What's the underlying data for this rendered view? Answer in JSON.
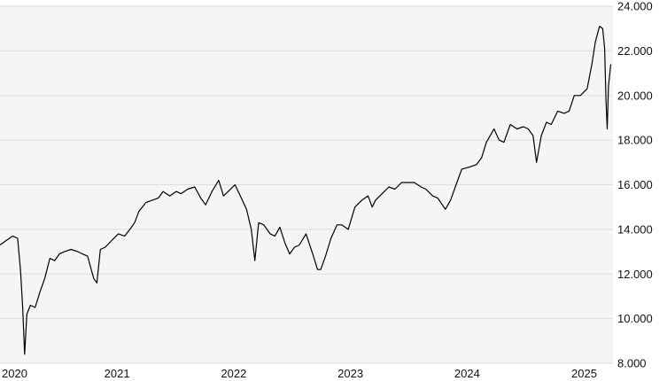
{
  "chart_data": {
    "type": "line",
    "title": "",
    "xlabel": "",
    "ylabel": "",
    "ylim": [
      8000,
      24000
    ],
    "y_ticks": [
      8000,
      10000,
      12000,
      14000,
      16000,
      18000,
      20000,
      22000,
      24000
    ],
    "y_tick_labels": [
      "8.000",
      "10.000",
      "12.000",
      "14.000",
      "16.000",
      "18.000",
      "20.000",
      "22.000",
      "24.000"
    ],
    "y_axis_position": "right",
    "x_ticks": [
      "2020-01-01",
      "2021-01-01",
      "2022-01-01",
      "2023-01-01",
      "2024-01-01",
      "2025-01-01"
    ],
    "x_tick_labels": [
      "2020",
      "2021",
      "2022",
      "2023",
      "2024",
      "2025"
    ],
    "xlim": [
      "2020-01-01",
      "2025-04-01"
    ],
    "grid": "horizontal",
    "line_color": "#000000",
    "plot_background": "#f5f5f5",
    "series": [
      {
        "x": [
          "2020-01-01",
          "2020-01-20",
          "2020-02-10",
          "2020-02-25",
          "2020-03-05",
          "2020-03-12",
          "2020-03-18",
          "2020-03-25",
          "2020-04-05",
          "2020-04-20",
          "2020-05-05",
          "2020-05-20",
          "2020-06-05",
          "2020-06-20",
          "2020-07-05",
          "2020-07-20",
          "2020-08-10",
          "2020-09-01",
          "2020-09-15",
          "2020-10-01",
          "2020-10-20",
          "2020-10-30",
          "2020-11-10",
          "2020-11-25",
          "2020-12-15",
          "2021-01-05",
          "2021-01-25",
          "2021-02-10",
          "2021-02-25",
          "2021-03-10",
          "2021-04-01",
          "2021-04-20",
          "2021-05-10",
          "2021-05-25",
          "2021-06-15",
          "2021-07-05",
          "2021-07-20",
          "2021-08-10",
          "2021-09-01",
          "2021-09-20",
          "2021-10-05",
          "2021-10-25",
          "2021-11-15",
          "2021-11-30",
          "2021-12-15",
          "2022-01-05",
          "2022-01-25",
          "2022-02-10",
          "2022-02-25",
          "2022-03-08",
          "2022-03-20",
          "2022-04-05",
          "2022-04-25",
          "2022-05-10",
          "2022-05-25",
          "2022-06-10",
          "2022-06-25",
          "2022-07-10",
          "2022-07-25",
          "2022-08-15",
          "2022-09-05",
          "2022-09-20",
          "2022-09-30",
          "2022-10-15",
          "2022-11-01",
          "2022-11-20",
          "2022-12-05",
          "2022-12-25",
          "2023-01-15",
          "2023-02-05",
          "2023-02-25",
          "2023-03-10",
          "2023-03-20",
          "2023-04-10",
          "2023-05-01",
          "2023-05-20",
          "2023-06-10",
          "2023-07-01",
          "2023-07-20",
          "2023-08-10",
          "2023-08-25",
          "2023-09-15",
          "2023-10-01",
          "2023-10-25",
          "2023-11-10",
          "2023-11-30",
          "2023-12-15",
          "2024-01-10",
          "2024-01-30",
          "2024-02-15",
          "2024-03-01",
          "2024-03-25",
          "2024-04-10",
          "2024-04-25",
          "2024-05-15",
          "2024-06-05",
          "2024-06-25",
          "2024-07-10",
          "2024-07-25",
          "2024-08-05",
          "2024-08-20",
          "2024-09-05",
          "2024-09-20",
          "2024-10-10",
          "2024-10-30",
          "2024-11-15",
          "2024-12-01",
          "2024-12-20",
          "2025-01-10",
          "2025-01-25",
          "2025-02-05",
          "2025-02-18",
          "2025-02-28",
          "2025-03-06",
          "2025-03-10",
          "2025-03-14",
          "2025-03-18",
          "2025-03-25"
        ],
        "y": [
          13300,
          13500,
          13700,
          13600,
          12200,
          10500,
          8400,
          10200,
          10600,
          10500,
          11200,
          11800,
          12700,
          12600,
          12900,
          13000,
          13100,
          13000,
          12900,
          12800,
          11800,
          11600,
          13100,
          13200,
          13500,
          13800,
          13700,
          14000,
          14300,
          14800,
          15200,
          15300,
          15400,
          15700,
          15500,
          15700,
          15600,
          15800,
          15900,
          15400,
          15100,
          15700,
          16200,
          15500,
          15700,
          16000,
          15400,
          14900,
          14000,
          12600,
          14300,
          14200,
          13800,
          13700,
          14100,
          13400,
          12900,
          13200,
          13300,
          13800,
          12900,
          12200,
          12200,
          12800,
          13600,
          14200,
          14200,
          14000,
          15000,
          15300,
          15500,
          15000,
          15300,
          15600,
          15900,
          15800,
          16100,
          16100,
          16100,
          15900,
          15800,
          15500,
          15400,
          14900,
          15300,
          16100,
          16700,
          16800,
          16900,
          17200,
          17900,
          18500,
          18000,
          17900,
          18700,
          18500,
          18600,
          18500,
          18200,
          17000,
          18200,
          18800,
          18700,
          19300,
          19200,
          19300,
          20000,
          20000,
          20300,
          21400,
          22400,
          23100,
          23000,
          22100,
          19800,
          18500,
          20400,
          21400
        ]
      }
    ]
  }
}
